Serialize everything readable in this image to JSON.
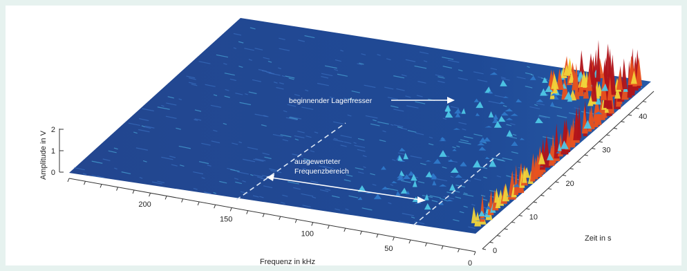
{
  "chart_data": {
    "type": "surface-3d",
    "title": "",
    "xlabel": "Frequenz in kHz",
    "ylabel": "Zeit in s",
    "zlabel": "Amplitude in V",
    "x_ticks": [
      200,
      150,
      100,
      50,
      0
    ],
    "y_ticks": [
      0,
      10,
      20,
      30,
      40
    ],
    "z_ticks": [
      0,
      1,
      2
    ],
    "xlim": [
      0,
      250
    ],
    "ylim": [
      0,
      47
    ],
    "zlim": [
      0,
      2
    ],
    "grid": false,
    "colormap": [
      "#1e3f8a",
      "#2f78c9",
      "#4ec7e6",
      "#f0d33a",
      "#e8521f",
      "#b0141a"
    ],
    "annotations": [
      {
        "text": "beginnender Lagerfresser",
        "x": 20,
        "y": 35
      },
      {
        "text_lines": [
          "ausgewerteter",
          "Frequenzbereich"
        ],
        "x_range": [
          30,
          140
        ]
      }
    ]
  }
}
